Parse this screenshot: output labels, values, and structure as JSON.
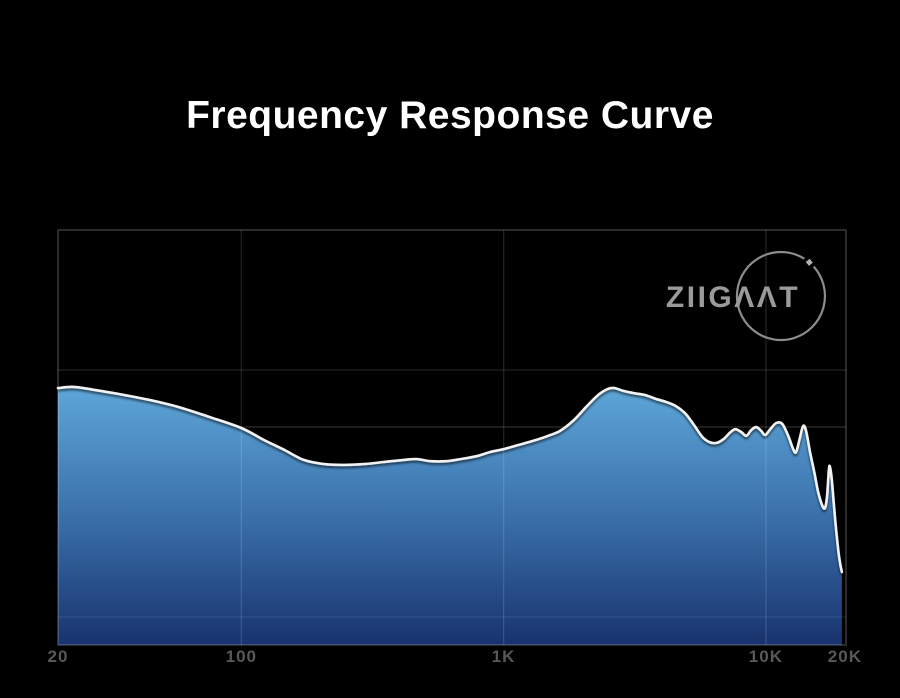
{
  "page": {
    "background_color": "#000000"
  },
  "header": {
    "title": "Frequency Response Curve",
    "title_color": "#ffffff"
  },
  "logo": {
    "text": "ZIIGΛΛT",
    "text_color": "#9a9a9a",
    "circle_color": "#8d8d8d"
  },
  "chart_data": {
    "type": "area",
    "title": "Frequency Response Curve",
    "x_scale": "log",
    "x_range_hz": [
      20,
      20000
    ],
    "x_ticks": [
      {
        "label": "20",
        "freq": 20
      },
      {
        "label": "100",
        "freq": 100
      },
      {
        "label": "1K",
        "freq": 1000
      },
      {
        "label": "10K",
        "freq": 10000
      },
      {
        "label": "20K",
        "freq": 20000
      }
    ],
    "y_axis": "none shown; level is relative 0-100 of plot height",
    "legend": "none",
    "grid": "vertical lines at 100/1K/10K, sparse horizontal lines",
    "colors": {
      "area_top": "#5fa8da",
      "area_mid": "#3a70aa",
      "area_bottom": "#162f6a",
      "line": "#f2f2f2",
      "grid": "#2a2a2a",
      "tick_label": "#585858"
    },
    "series": [
      {
        "name": "frequency-response",
        "points": [
          {
            "f": 20,
            "level": 61.9
          },
          {
            "f": 23,
            "level": 62.2
          },
          {
            "f": 28,
            "level": 61.4
          },
          {
            "f": 34,
            "level": 60.5
          },
          {
            "f": 45,
            "level": 59.0
          },
          {
            "f": 58,
            "level": 57.3
          },
          {
            "f": 76,
            "level": 54.9
          },
          {
            "f": 100,
            "level": 52.3
          },
          {
            "f": 122,
            "level": 49.4
          },
          {
            "f": 146,
            "level": 47.0
          },
          {
            "f": 173,
            "level": 44.6
          },
          {
            "f": 207,
            "level": 43.6
          },
          {
            "f": 246,
            "level": 43.4
          },
          {
            "f": 293,
            "level": 43.6
          },
          {
            "f": 349,
            "level": 44.1
          },
          {
            "f": 416,
            "level": 44.6
          },
          {
            "f": 466,
            "level": 44.8
          },
          {
            "f": 527,
            "level": 44.3
          },
          {
            "f": 605,
            "level": 44.3
          },
          {
            "f": 684,
            "level": 44.8
          },
          {
            "f": 788,
            "level": 45.5
          },
          {
            "f": 889,
            "level": 46.5
          },
          {
            "f": 1000,
            "level": 47.2
          },
          {
            "f": 1137,
            "level": 48.2
          },
          {
            "f": 1297,
            "level": 49.2
          },
          {
            "f": 1478,
            "level": 50.4
          },
          {
            "f": 1641,
            "level": 51.6
          },
          {
            "f": 1838,
            "level": 54.0
          },
          {
            "f": 2059,
            "level": 57.3
          },
          {
            "f": 2287,
            "level": 60.2
          },
          {
            "f": 2495,
            "level": 61.7
          },
          {
            "f": 2655,
            "level": 61.9
          },
          {
            "f": 2871,
            "level": 61.2
          },
          {
            "f": 3134,
            "level": 60.7
          },
          {
            "f": 3485,
            "level": 60.2
          },
          {
            "f": 3802,
            "level": 59.3
          },
          {
            "f": 4149,
            "level": 58.6
          },
          {
            "f": 4527,
            "level": 57.6
          },
          {
            "f": 4941,
            "level": 55.7
          },
          {
            "f": 5346,
            "level": 52.8
          },
          {
            "f": 5730,
            "level": 50.1
          },
          {
            "f": 6095,
            "level": 48.9
          },
          {
            "f": 6484,
            "level": 48.7
          },
          {
            "f": 6886,
            "level": 49.6
          },
          {
            "f": 7327,
            "level": 51.3
          },
          {
            "f": 7653,
            "level": 52.0
          },
          {
            "f": 8064,
            "level": 51.3
          },
          {
            "f": 8415,
            "level": 50.4
          },
          {
            "f": 8792,
            "level": 51.8
          },
          {
            "f": 9183,
            "level": 52.5
          },
          {
            "f": 9594,
            "level": 51.6
          },
          {
            "f": 9932,
            "level": 50.6
          },
          {
            "f": 10386,
            "level": 52.0
          },
          {
            "f": 10946,
            "level": 53.5
          },
          {
            "f": 11533,
            "level": 53.3
          },
          {
            "f": 12153,
            "level": 50.4
          },
          {
            "f": 12707,
            "level": 47.2
          },
          {
            "f": 13040,
            "level": 46.5
          },
          {
            "f": 13491,
            "level": 50.1
          },
          {
            "f": 13868,
            "level": 52.8
          },
          {
            "f": 14226,
            "level": 51.6
          },
          {
            "f": 14727,
            "level": 46.5
          },
          {
            "f": 15276,
            "level": 41.7
          },
          {
            "f": 15814,
            "level": 36.9
          },
          {
            "f": 16370,
            "level": 33.7
          },
          {
            "f": 16794,
            "level": 33.0
          },
          {
            "f": 17102,
            "level": 35.9
          },
          {
            "f": 17381,
            "level": 42.2
          },
          {
            "f": 17545,
            "level": 42.9
          },
          {
            "f": 17857,
            "level": 39.3
          },
          {
            "f": 18328,
            "level": 30.6
          },
          {
            "f": 18824,
            "level": 23.4
          },
          {
            "f": 19139,
            "level": 20.0
          },
          {
            "f": 19475,
            "level": 17.6
          }
        ]
      }
    ]
  }
}
